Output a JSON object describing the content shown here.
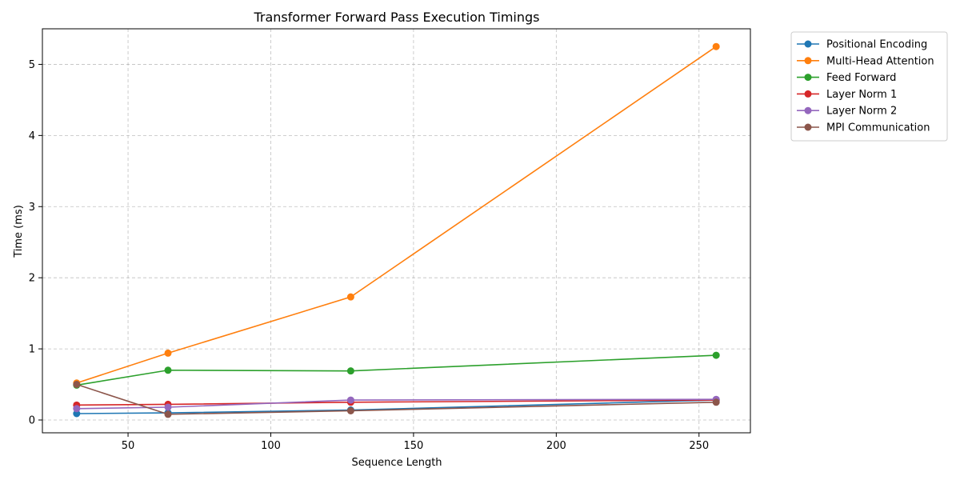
{
  "chart_data": {
    "type": "line",
    "title": "Transformer Forward Pass Execution Timings",
    "xlabel": "Sequence Length",
    "ylabel": "Time (ms)",
    "xlim": [
      20,
      268
    ],
    "ylim": [
      -0.18,
      5.5
    ],
    "xticks": [
      50,
      100,
      150,
      200,
      250
    ],
    "yticks": [
      0,
      1,
      2,
      3,
      4,
      5
    ],
    "grid": true,
    "legend_position": "outside-top-right",
    "x": [
      32,
      64,
      128,
      256
    ],
    "series": [
      {
        "name": "Positional Encoding",
        "color": "#1f77b4",
        "values": [
          0.09,
          0.1,
          0.14,
          0.28
        ]
      },
      {
        "name": "Multi-Head Attention",
        "color": "#ff7f0e",
        "values": [
          0.52,
          0.94,
          1.73,
          5.25
        ]
      },
      {
        "name": "Feed Forward",
        "color": "#2ca02c",
        "values": [
          0.49,
          0.7,
          0.69,
          0.91
        ]
      },
      {
        "name": "Layer Norm 1",
        "color": "#d62728",
        "values": [
          0.21,
          0.22,
          0.25,
          0.28
        ]
      },
      {
        "name": "Layer Norm 2",
        "color": "#9467bd",
        "values": [
          0.16,
          0.18,
          0.28,
          0.29
        ]
      },
      {
        "name": "MPI Communication",
        "color": "#8c564b",
        "values": [
          0.5,
          0.08,
          0.13,
          0.25
        ]
      }
    ]
  }
}
